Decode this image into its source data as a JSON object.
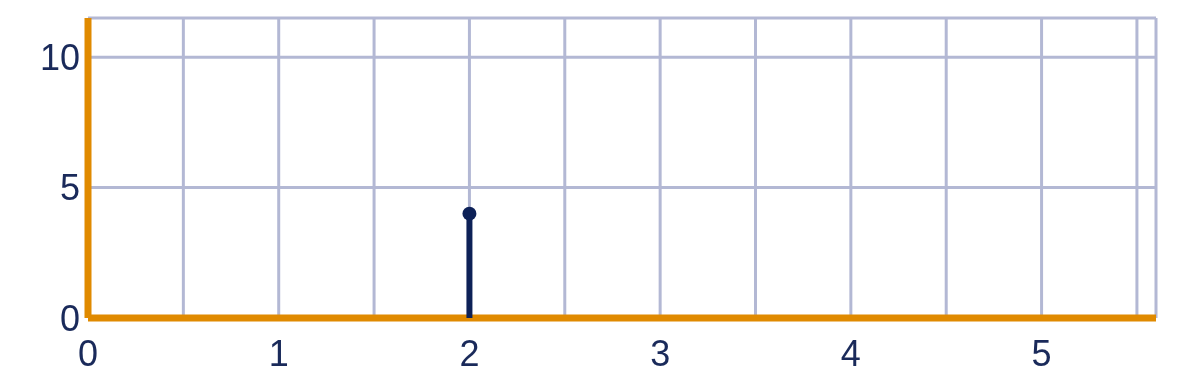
{
  "chart_data": {
    "type": "lollipop",
    "x": [
      2
    ],
    "values": [
      4
    ],
    "color": "#0d2157",
    "xlim": [
      0,
      5.6
    ],
    "ylim": [
      0,
      11.5
    ],
    "xticks": [
      0,
      {
        "value": 0.5,
        "label": null
      },
      1,
      {
        "value": 1.5,
        "label": null
      },
      2,
      {
        "value": 2.5,
        "label": null
      },
      3,
      {
        "value": 3.5,
        "label": null
      },
      4,
      {
        "value": 4.5,
        "label": null
      },
      5,
      {
        "value": 5.5,
        "label": null
      }
    ],
    "yticks": [
      0,
      5,
      10
    ],
    "grid": true,
    "marker": "circle"
  }
}
